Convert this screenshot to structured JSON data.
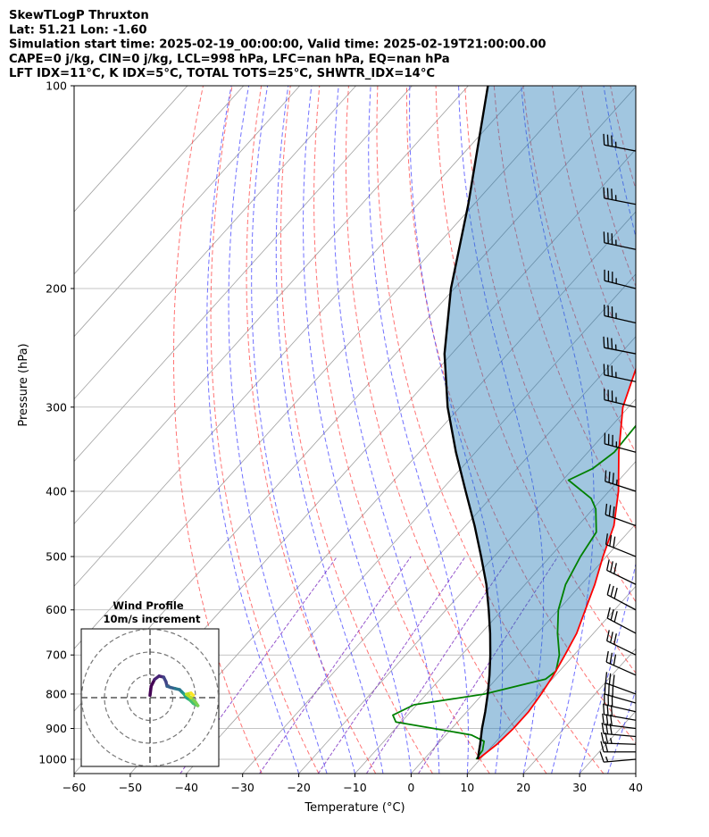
{
  "header": {
    "lines": [
      "SkewTLogP Thruxton",
      "Lat: 51.21   Lon: -1.60",
      "Simulation start time: 2025-02-19_00:00:00, Valid time: 2025-02-19T21:00:00.00",
      "CAPE=0 j/kg, CIN=0 j/kg, LCL=998 hPa, LFC=nan hPa, EQ=nan hPa",
      "LFT IDX=11°C, K IDX=5°C, TOTAL TOTS=25°C, SHWTR_IDX=14°C"
    ]
  },
  "chart_data": {
    "type": "line",
    "subtype": "skew-t log-p",
    "xlabel": "Temperature (°C)",
    "ylabel": "Pressure (hPa)",
    "xlim": [
      -60,
      40
    ],
    "ylim": [
      1050,
      100
    ],
    "y_scale": "log",
    "x_ticks": [
      -60,
      -50,
      -40,
      -30,
      -20,
      -10,
      0,
      10,
      20,
      30,
      40
    ],
    "x_tick_labels": [
      "−60",
      "−50",
      "−40",
      "−30",
      "−20",
      "−10",
      "0",
      "10",
      "20",
      "30",
      "40"
    ],
    "y_ticks": [
      1000,
      900,
      800,
      700,
      600,
      500,
      400,
      300,
      200,
      100
    ],
    "y_tick_labels": [
      "1000",
      "900",
      "800",
      "700",
      "600",
      "500",
      "400",
      "300",
      "200",
      "100"
    ],
    "grid": true,
    "colors": {
      "temperature": "#ff0000",
      "dewpoint": "#008000",
      "parcel": "#000000",
      "cin_cape_fill": "#1f77b4",
      "isotherm": "#a0a0a0",
      "dry_adiabat": "#ff4444",
      "moist_adiabat": "#3333ff",
      "mixing_ratio": "#7b2cbf"
    },
    "series": [
      {
        "key": "temperature",
        "points": [
          [
            1000,
            9.6
          ],
          [
            950,
            10.6
          ],
          [
            900,
            11.0
          ],
          [
            850,
            11.0
          ],
          [
            800,
            10.4
          ],
          [
            750,
            9.6
          ],
          [
            700,
            8.4
          ],
          [
            650,
            7.0
          ],
          [
            600,
            4.8
          ],
          [
            550,
            2.4
          ],
          [
            500,
            -0.6
          ],
          [
            450,
            -3.6
          ],
          [
            400,
            -8.3
          ],
          [
            350,
            -14.5
          ],
          [
            300,
            -21.0
          ],
          [
            250,
            -26.3
          ],
          [
            230,
            -26.0
          ],
          [
            200,
            -21.8
          ],
          [
            180,
            -17.5
          ],
          [
            170,
            -14.5
          ],
          [
            160,
            -10.8
          ],
          [
            150,
            -7.5
          ],
          [
            140,
            -4.5
          ],
          [
            130,
            -2.0
          ],
          [
            120,
            1.2
          ],
          [
            110,
            4.5
          ],
          [
            100,
            8.7
          ]
        ]
      },
      {
        "key": "dewpoint",
        "points": [
          [
            1000,
            9.3
          ],
          [
            970,
            9.0
          ],
          [
            940,
            7.8
          ],
          [
            920,
            4.5
          ],
          [
            880,
            -11.0
          ],
          [
            860,
            -12.6
          ],
          [
            830,
            -10.5
          ],
          [
            800,
            0.3
          ],
          [
            760,
            8.8
          ],
          [
            740,
            9.4
          ],
          [
            700,
            7.4
          ],
          [
            650,
            3.6
          ],
          [
            600,
            0.0
          ],
          [
            550,
            -2.8
          ],
          [
            500,
            -4.6
          ],
          [
            460,
            -5.7
          ],
          [
            425,
            -9.5
          ],
          [
            410,
            -12.0
          ],
          [
            385,
            -19.0
          ],
          [
            370,
            -16.5
          ],
          [
            350,
            -15.3
          ],
          [
            320,
            -15.7
          ],
          [
            300,
            -16.2
          ],
          [
            280,
            -16.6
          ],
          [
            260,
            -18.3
          ],
          [
            250,
            -19.5
          ],
          [
            240,
            -20.7
          ],
          [
            220,
            -21.8
          ],
          [
            210,
            -20.0
          ],
          [
            200,
            -19.0
          ],
          [
            190,
            -17.8
          ],
          [
            170,
            -14.0
          ],
          [
            160,
            -14.7
          ],
          [
            150,
            -15.6
          ],
          [
            140,
            -13.5
          ],
          [
            130,
            -10.5
          ],
          [
            120,
            -7.4
          ],
          [
            110,
            -4.5
          ],
          [
            100,
            -2.4
          ]
        ]
      },
      {
        "key": "parcel",
        "points": [
          [
            1000,
            9.6
          ],
          [
            975,
            8.6
          ],
          [
            950,
            7.6
          ],
          [
            900,
            5.4
          ],
          [
            850,
            3.3
          ],
          [
            800,
            0.9
          ],
          [
            750,
            -1.8
          ],
          [
            700,
            -4.9
          ],
          [
            650,
            -8.4
          ],
          [
            600,
            -12.4
          ],
          [
            550,
            -16.9
          ],
          [
            500,
            -22.3
          ],
          [
            450,
            -28.4
          ],
          [
            400,
            -35.5
          ],
          [
            350,
            -43.5
          ],
          [
            300,
            -52.2
          ],
          [
            250,
            -61.3
          ],
          [
            200,
            -70.6
          ],
          [
            150,
            -81.0
          ],
          [
            100,
            -96.5
          ]
        ]
      }
    ],
    "wind_barbs": {
      "pressures": [
        1000,
        975,
        950,
        925,
        900,
        875,
        850,
        825,
        800,
        750,
        700,
        650,
        600,
        550,
        500,
        450,
        400,
        350,
        300,
        275,
        250,
        225,
        200,
        175,
        150,
        125,
        100
      ],
      "direction_deg": [
        265,
        270,
        272,
        275,
        277,
        280,
        283,
        286,
        290,
        294,
        296,
        298,
        298,
        296,
        292,
        290,
        288,
        285,
        283,
        282,
        281,
        283,
        284,
        282,
        281,
        281,
        280
      ],
      "speed_kt": [
        15,
        20,
        25,
        30,
        30,
        30,
        30,
        30,
        30,
        30,
        30,
        30,
        30,
        30,
        30,
        30,
        35,
        35,
        35,
        35,
        35,
        35,
        35,
        35,
        35,
        35,
        35
      ]
    },
    "inset": {
      "title": "Wind Profile",
      "subtitle": "10m/s increment",
      "type": "hodograph",
      "rings_ms": [
        10,
        20,
        30
      ],
      "points_uv": [
        [
          0,
          1
        ],
        [
          0.5,
          5
        ],
        [
          2,
          8
        ],
        [
          4,
          9.5
        ],
        [
          6,
          9
        ],
        [
          7,
          7
        ],
        [
          7.5,
          5
        ],
        [
          9,
          4.5
        ],
        [
          11,
          4
        ],
        [
          13,
          3.5
        ],
        [
          14,
          2.5
        ],
        [
          15,
          1.5
        ],
        [
          16,
          0
        ],
        [
          17.5,
          -1
        ],
        [
          19,
          -2.5
        ],
        [
          21,
          -3.5
        ],
        [
          20,
          -2
        ],
        [
          18,
          0
        ],
        [
          16,
          1.5
        ],
        [
          18,
          2
        ],
        [
          19,
          1
        ]
      ]
    }
  }
}
